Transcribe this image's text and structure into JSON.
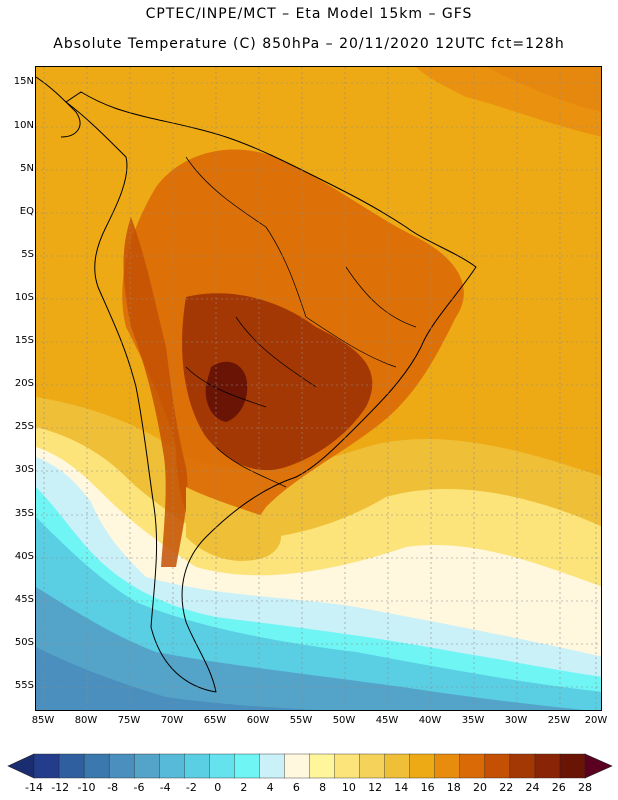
{
  "title": {
    "line1": "CPTEC/INPE/MCT –  Eta Model 15km – GFS",
    "line2": "Absolute Temperature (C) 850hPa – 20/11/2020 12UTC fct=128h"
  },
  "map": {
    "lat_labels": [
      "15N",
      "10N",
      "5N",
      "EQ",
      "5S",
      "10S",
      "15S",
      "20S",
      "25S",
      "30S",
      "35S",
      "40S",
      "45S",
      "50S",
      "55S"
    ],
    "lon_labels": [
      "85W",
      "80W",
      "75W",
      "70W",
      "65W",
      "60W",
      "55W",
      "50W",
      "45W",
      "40W",
      "35W",
      "30W",
      "25W",
      "20W"
    ]
  },
  "colorbar": {
    "labels": [
      "-14",
      "-12",
      "-10",
      "-8",
      "-6",
      "-4",
      "-2",
      "0",
      "2",
      "4",
      "6",
      "8",
      "10",
      "12",
      "14",
      "16",
      "18",
      "20",
      "22",
      "24",
      "26",
      "28"
    ],
    "colors": [
      "#243c8c",
      "#2f5f9e",
      "#3a78ae",
      "#4a8fbd",
      "#54a4c9",
      "#56bad8",
      "#5acfe4",
      "#66e2ee",
      "#70f5f5",
      "#caf0f8",
      "#fff7de",
      "#fff59a",
      "#fce47a",
      "#f5d35a",
      "#f0bf38",
      "#eeaa14",
      "#e88c0e",
      "#da6a06",
      "#c45004",
      "#a43804",
      "#8a2406",
      "#6a1406"
    ],
    "under_color": "#1a2d70",
    "over_color": "#5a0020"
  },
  "colors": {
    "background": "#ffffff",
    "warm_base": "#eeaa14",
    "hot": "#c45004",
    "cold": "#56bad8"
  }
}
